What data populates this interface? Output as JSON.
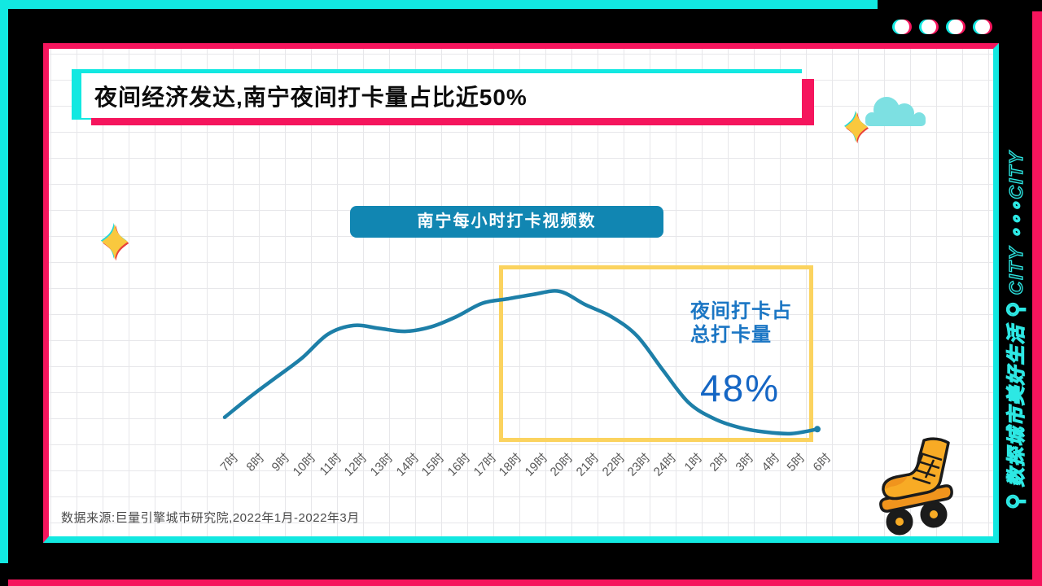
{
  "slide": {
    "title": "夜间经济发达,南宁夜间打卡量占比近50%",
    "source": "数据来源:巨量引擎城市研究院,2022年1月-2022年3月",
    "side_strip": {
      "magnifier_glyph": "⚲",
      "cn_text": "数探城市美好生活",
      "en_text": "CITY ∘∘∘CITY"
    },
    "window_dots_count": 4
  },
  "chart_data": {
    "type": "line",
    "title": "南宁每小时打卡视频数",
    "categories": [
      "7时",
      "8时",
      "9时",
      "10时",
      "11时",
      "12时",
      "13时",
      "14时",
      "15时",
      "16时",
      "17时",
      "18时",
      "19时",
      "20时",
      "21时",
      "22时",
      "23时",
      "24时",
      "1时",
      "2时",
      "3时",
      "4时",
      "5时",
      "6时"
    ],
    "values": [
      15,
      29,
      42,
      55,
      71,
      77,
      75,
      73,
      76,
      83,
      92,
      95,
      98,
      100,
      91,
      83,
      70,
      47,
      25,
      14,
      8,
      5,
      4,
      7
    ],
    "values_unit": "relative index, peak 20时 = 100 (no y-axis shown)",
    "xlabel": "",
    "ylabel": "",
    "grid": true,
    "legend": "none",
    "line_color": "#1d7fa8",
    "highlight": {
      "range_categories": [
        "18时",
        "6时"
      ],
      "box_color": "#fbd35f",
      "label_line1": "夜间打卡占",
      "label_line2": "总打卡量",
      "value": "48%"
    }
  },
  "colors": {
    "frame_cyan": "#12e8e1",
    "frame_pink": "#f5155d",
    "badge_bg": "#1186b2",
    "annotation_blue": "#1b76c4",
    "grid_line": "#e7e7ea",
    "sparkle_gold": "#f9c83e",
    "cloud_teal": "#7de0e2",
    "skate_orange": "#f8ab25"
  }
}
